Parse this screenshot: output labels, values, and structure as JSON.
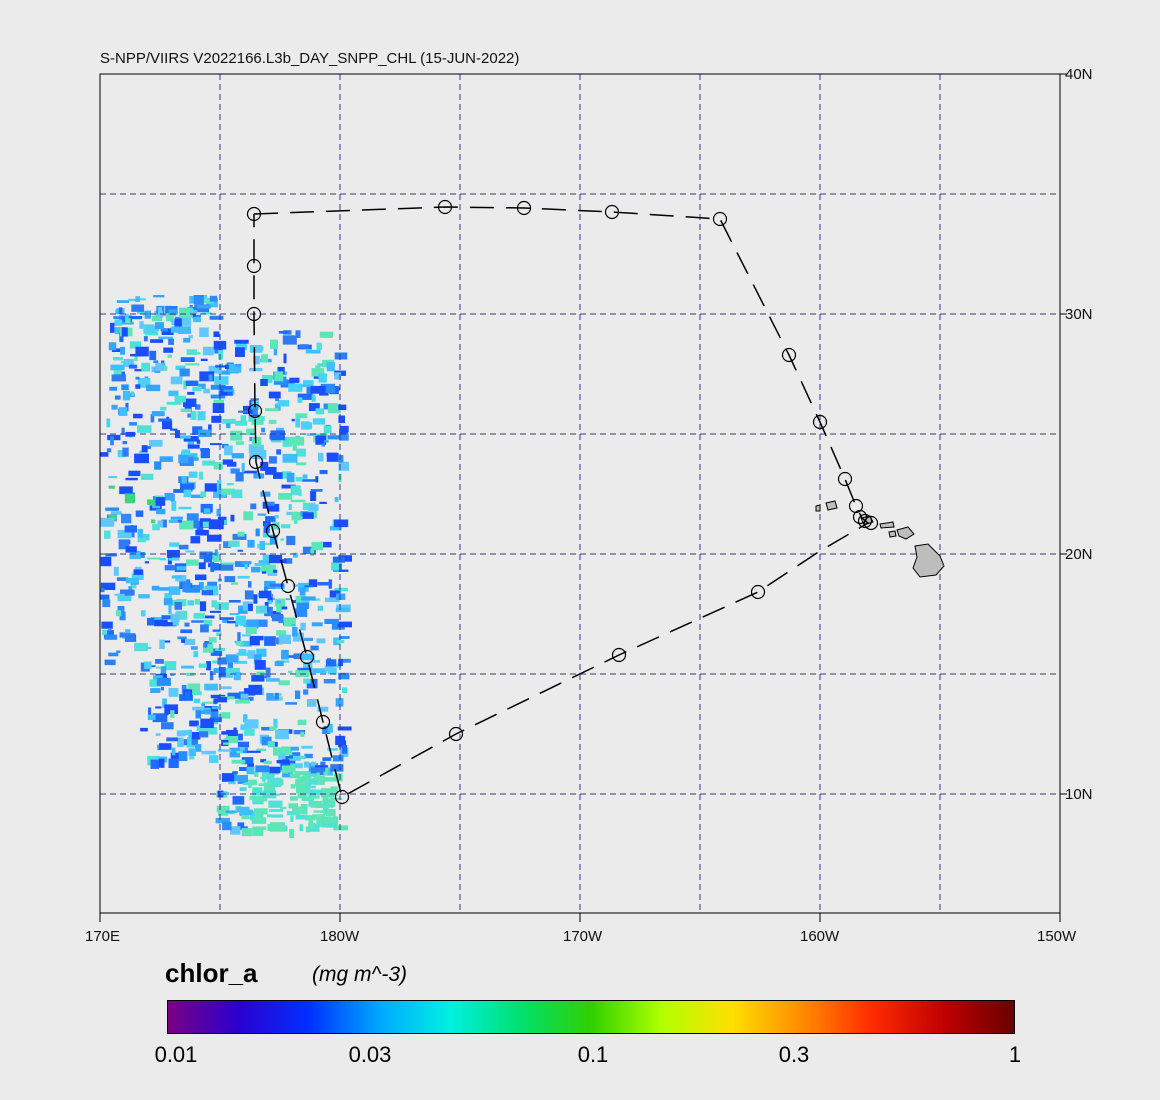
{
  "map": {
    "title": "S-NPP/VIIRS V2022166.L3b_DAY_SNPP_CHL (15-JUN-2022)",
    "lat_labels": [
      "40N",
      "30N",
      "20N",
      "10N"
    ],
    "lon_labels": [
      "170E",
      "180W",
      "170W",
      "160W",
      "150W"
    ]
  },
  "colorbar": {
    "title": "chlor_a",
    "units": "(mg m^-3)",
    "tick_labels": [
      "0.01",
      "0.03",
      "0.1",
      "0.3",
      "1"
    ],
    "colors": [
      "#7a0082",
      "#2a00d0",
      "#0030ff",
      "#00a8ff",
      "#00f0e0",
      "#00e070",
      "#30d000",
      "#b0ff00",
      "#ffe000",
      "#ff8a00",
      "#ff2a00",
      "#c00000",
      "#6a0000"
    ]
  },
  "styles": {
    "background": "#ebebeb",
    "grid_color": "#3a3a8a",
    "land_color": "#bdbdbd"
  }
}
